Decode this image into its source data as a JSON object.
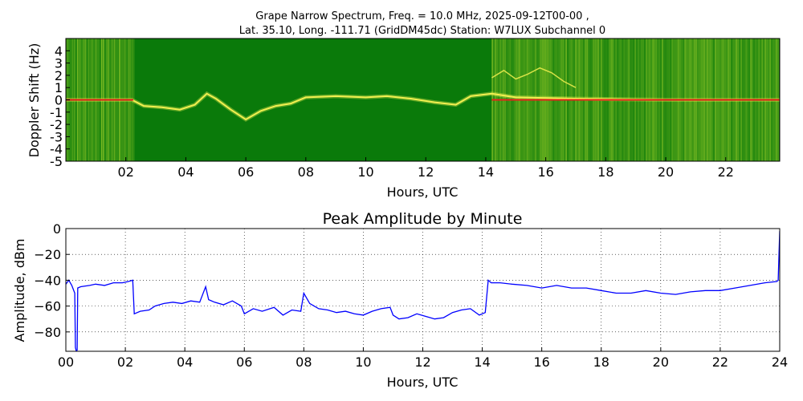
{
  "chart_data": [
    {
      "type": "heatmap",
      "title_line1": "Grape Narrow Spectrum, Freq. = 10.0 MHz, 2025-09-12T00-00 ,",
      "title_line2": "Lat.  35.10, Long. -111.71 (GridDM45dc) Station: W7LUX Subchannel 0",
      "xlabel": "Hours, UTC",
      "ylabel": "Doppler Shift (Hz)",
      "xlim": [
        0,
        23.8
      ],
      "ylim": [
        -5,
        5
      ],
      "xticks": [
        "02",
        "04",
        "06",
        "08",
        "10",
        "12",
        "14",
        "16",
        "18",
        "20",
        "22"
      ],
      "xtick_values": [
        2,
        4,
        6,
        8,
        10,
        12,
        14,
        16,
        18,
        20,
        22
      ],
      "yticks": [
        "4",
        "3",
        "2",
        "1",
        "0",
        "-1",
        "-2",
        "-3",
        "-4",
        "-5"
      ],
      "ytick_values": [
        4,
        3,
        2,
        1,
        0,
        -1,
        -2,
        -3,
        -4,
        -5
      ],
      "colors": {
        "background": "#0a7a0a",
        "noisy": "#9ccc2a",
        "trace": "#f2f050",
        "peak": "#e8201a"
      },
      "noisy_periods_hours": [
        [
          0,
          2.25
        ],
        [
          14.2,
          23.8
        ]
      ],
      "doppler_trace": [
        {
          "x": 0.0,
          "y": 0.0
        },
        {
          "x": 1.0,
          "y": 0.0
        },
        {
          "x": 2.2,
          "y": 0.0
        },
        {
          "x": 2.6,
          "y": -0.5
        },
        {
          "x": 3.2,
          "y": -0.6
        },
        {
          "x": 3.8,
          "y": -0.8
        },
        {
          "x": 4.3,
          "y": -0.4
        },
        {
          "x": 4.7,
          "y": 0.5
        },
        {
          "x": 5.0,
          "y": 0.1
        },
        {
          "x": 5.5,
          "y": -0.8
        },
        {
          "x": 6.0,
          "y": -1.6
        },
        {
          "x": 6.5,
          "y": -0.9
        },
        {
          "x": 7.0,
          "y": -0.5
        },
        {
          "x": 7.5,
          "y": -0.3
        },
        {
          "x": 8.0,
          "y": 0.2
        },
        {
          "x": 9.0,
          "y": 0.3
        },
        {
          "x": 10.0,
          "y": 0.2
        },
        {
          "x": 10.7,
          "y": 0.3
        },
        {
          "x": 11.5,
          "y": 0.1
        },
        {
          "x": 12.3,
          "y": -0.2
        },
        {
          "x": 13.0,
          "y": -0.4
        },
        {
          "x": 13.5,
          "y": 0.3
        },
        {
          "x": 14.2,
          "y": 0.5
        },
        {
          "x": 15.0,
          "y": 0.2
        },
        {
          "x": 17.0,
          "y": 0.1
        },
        {
          "x": 20.0,
          "y": 0.0
        },
        {
          "x": 23.8,
          "y": 0.0
        }
      ],
      "secondary_trace": [
        {
          "x": 14.2,
          "y": 1.8
        },
        {
          "x": 14.6,
          "y": 2.4
        },
        {
          "x": 15.0,
          "y": 1.7
        },
        {
          "x": 15.4,
          "y": 2.1
        },
        {
          "x": 15.8,
          "y": 2.6
        },
        {
          "x": 16.2,
          "y": 2.2
        },
        {
          "x": 16.6,
          "y": 1.5
        },
        {
          "x": 17.0,
          "y": 1.0
        }
      ],
      "peak_line_hz": 0
    },
    {
      "type": "line",
      "title": "Peak Amplitude by Minute",
      "xlabel": "Hours, UTC",
      "ylabel": "Amplitude, dBm",
      "xlim": [
        0,
        24
      ],
      "ylim": [
        -95,
        0
      ],
      "xticks": [
        "00",
        "02",
        "04",
        "06",
        "08",
        "10",
        "12",
        "14",
        "16",
        "18",
        "20",
        "22",
        "24"
      ],
      "xtick_values": [
        0,
        2,
        4,
        6,
        8,
        10,
        12,
        14,
        16,
        18,
        20,
        22,
        24
      ],
      "yticks": [
        "0",
        "−20",
        "−40",
        "−60",
        "−80"
      ],
      "ytick_values": [
        0,
        -20,
        -40,
        -60,
        -80
      ],
      "grid": true,
      "line_color": "#0000ff",
      "series": [
        {
          "x": [
            0,
            0.1,
            0.2,
            0.3,
            0.32,
            0.35,
            0.38,
            0.4,
            0.5,
            0.8,
            1.0,
            1.3,
            1.6,
            1.9,
            2.1,
            2.25,
            2.3,
            2.5,
            2.8,
            3.0,
            3.3,
            3.6,
            3.9,
            4.2,
            4.5,
            4.7,
            4.8,
            5.0,
            5.3,
            5.6,
            5.9,
            6.0,
            6.3,
            6.6,
            7.0,
            7.3,
            7.6,
            7.9,
            8.0,
            8.2,
            8.5,
            8.8,
            9.1,
            9.4,
            9.7,
            10.0,
            10.3,
            10.6,
            10.9,
            11.0,
            11.2,
            11.5,
            11.8,
            12.1,
            12.4,
            12.7,
            13.0,
            13.3,
            13.6,
            13.9,
            14.1,
            14.2,
            14.3,
            14.6,
            15.0,
            15.5,
            16.0,
            16.5,
            17.0,
            17.5,
            18.0,
            18.5,
            19.0,
            19.5,
            20.0,
            20.5,
            21.0,
            21.5,
            22.0,
            22.5,
            23.0,
            23.5,
            23.9,
            23.95,
            24.0
          ],
          "y": [
            -43,
            -40,
            -44,
            -50,
            -92,
            -95,
            -94,
            -46,
            -45,
            -44,
            -43,
            -44,
            -42,
            -42,
            -41,
            -40,
            -66,
            -64,
            -63,
            -60,
            -58,
            -57,
            -58,
            -56,
            -57,
            -45,
            -55,
            -57,
            -59,
            -56,
            -60,
            -66,
            -62,
            -64,
            -61,
            -67,
            -63,
            -64,
            -50,
            -58,
            -62,
            -63,
            -65,
            -64,
            -66,
            -67,
            -64,
            -62,
            -61,
            -67,
            -70,
            -69,
            -66,
            -68,
            -70,
            -69,
            -65,
            -63,
            -62,
            -67,
            -65,
            -40,
            -42,
            -42,
            -43,
            -44,
            -46,
            -44,
            -46,
            -46,
            -48,
            -50,
            -50,
            -48,
            -50,
            -51,
            -49,
            -48,
            -48,
            -46,
            -44,
            -42,
            -41,
            -40,
            -2
          ]
        }
      ]
    }
  ]
}
